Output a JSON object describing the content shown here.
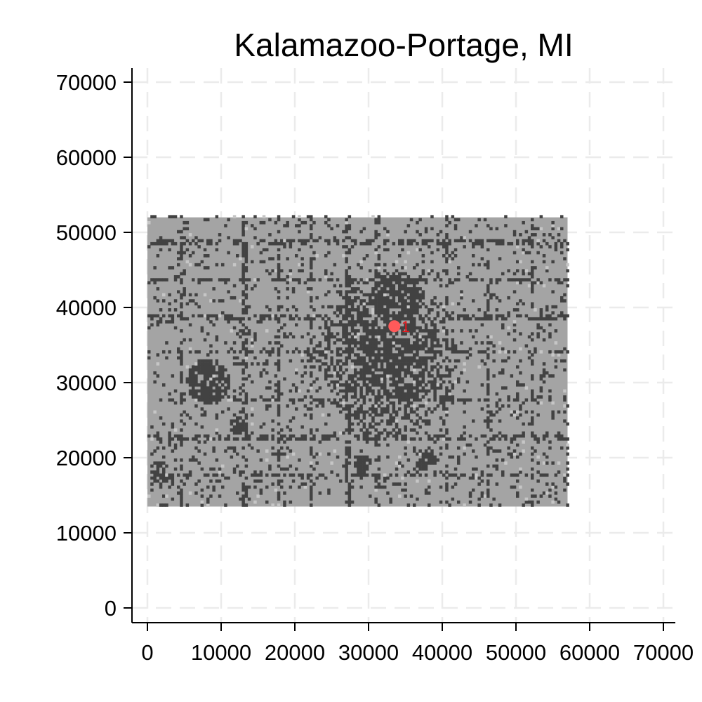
{
  "chart_data": {
    "type": "heatmap",
    "title": "Kalamazoo-Portage, MI",
    "xlabel": "",
    "ylabel": "",
    "xlim": [
      0,
      72000
    ],
    "ylim": [
      -2000,
      72000
    ],
    "x_ticks": [
      0,
      10000,
      20000,
      30000,
      40000,
      50000,
      60000,
      70000
    ],
    "y_ticks": [
      0,
      10000,
      20000,
      30000,
      40000,
      50000,
      60000,
      70000
    ],
    "x_tick_labels": [
      "0",
      "10000",
      "20000",
      "30000",
      "40000",
      "50000",
      "60000",
      "70000"
    ],
    "y_tick_labels": [
      "0",
      "10000",
      "20000",
      "30000",
      "40000",
      "50000",
      "60000",
      "70000"
    ],
    "grid": true,
    "raster_extent": {
      "x": [
        0,
        57000
      ],
      "y": [
        13500,
        52000
      ]
    },
    "dense_core": {
      "x": [
        23000,
        42000
      ],
      "y": [
        22000,
        44000
      ]
    },
    "marker": {
      "label": "1",
      "x": 33500,
      "y": 37500
    },
    "colors": {
      "background_cell": "#a4a4a4",
      "developed_cell": "#424242",
      "light_cell": "#c6c6c6",
      "marker": "#ff5a5a",
      "marker_label": "#e8141a",
      "grid": "#ebebeb"
    }
  }
}
